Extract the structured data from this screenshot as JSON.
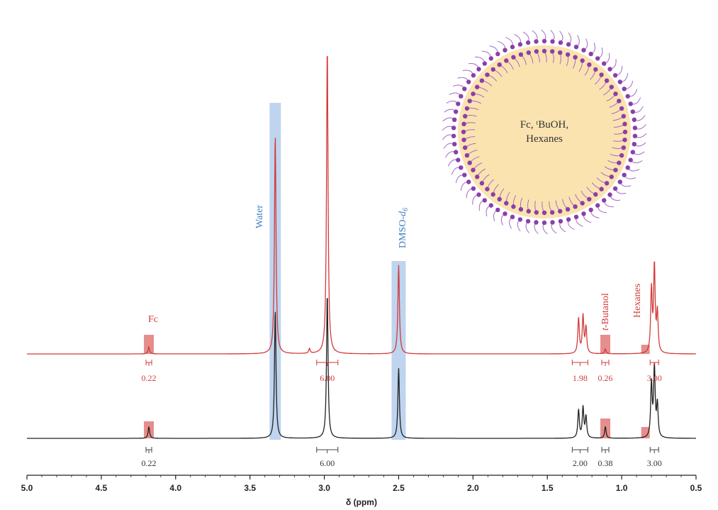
{
  "chart_data": {
    "type": "line",
    "xlabel": "δ (ppm)",
    "xlim": [
      5.0,
      0.5
    ],
    "x_ticks": [
      "5.0",
      "4.5",
      "4.0",
      "3.5",
      "3.0",
      "2.5",
      "2.0",
      "1.5",
      "1.0",
      "0.5"
    ],
    "x_tick_values": [
      5.0,
      4.5,
      4.0,
      3.5,
      3.0,
      2.5,
      2.0,
      1.5,
      1.0,
      0.5
    ],
    "series": [
      {
        "color": "#d23a3a",
        "peaks": [
          {
            "ppm": 4.18,
            "height": 0.03
          },
          {
            "ppm": 3.33,
            "height": 0.94
          },
          {
            "ppm": 3.1,
            "height": 0.02
          },
          {
            "ppm": 2.98,
            "height": 1.32
          },
          {
            "ppm": 2.5,
            "height": 0.38
          },
          {
            "ppm": 1.29,
            "height": 0.15
          },
          {
            "ppm": 1.26,
            "height": 0.16
          },
          {
            "ppm": 1.24,
            "height": 0.11
          },
          {
            "ppm": 1.11,
            "height": 0.02
          },
          {
            "ppm": 0.8,
            "height": 0.27
          },
          {
            "ppm": 0.78,
            "height": 0.37
          },
          {
            "ppm": 0.76,
            "height": 0.17
          }
        ],
        "integrals": [
          {
            "ppm": 4.18,
            "label": "0.22"
          },
          {
            "ppm": 2.98,
            "label": "6.00"
          },
          {
            "ppm": 1.28,
            "label": "1.98"
          },
          {
            "ppm": 1.11,
            "label": "0.26"
          },
          {
            "ppm": 0.78,
            "label": "3.00"
          }
        ]
      },
      {
        "color": "#222222",
        "peaks": [
          {
            "ppm": 4.18,
            "height": 0.05
          },
          {
            "ppm": 3.33,
            "height": 0.55
          },
          {
            "ppm": 2.98,
            "height": 0.62
          },
          {
            "ppm": 2.5,
            "height": 0.3
          },
          {
            "ppm": 1.29,
            "height": 0.12
          },
          {
            "ppm": 1.26,
            "height": 0.13
          },
          {
            "ppm": 1.24,
            "height": 0.09
          },
          {
            "ppm": 1.11,
            "height": 0.05
          },
          {
            "ppm": 0.8,
            "height": 0.23
          },
          {
            "ppm": 0.78,
            "height": 0.3
          },
          {
            "ppm": 0.76,
            "height": 0.14
          }
        ],
        "integrals": [
          {
            "ppm": 4.18,
            "label": "0.22"
          },
          {
            "ppm": 2.98,
            "label": "6.00"
          },
          {
            "ppm": 1.28,
            "label": "2.00"
          },
          {
            "ppm": 1.11,
            "label": "0.38"
          },
          {
            "ppm": 0.78,
            "label": "3.00"
          }
        ]
      }
    ],
    "solvent_highlights": [
      {
        "ppm": 3.33,
        "label": "Water",
        "color": "#a9c6e8"
      },
      {
        "ppm": 2.5,
        "label": "DMSO-d6",
        "color": "#a9c6e8"
      }
    ],
    "analyte_labels": [
      {
        "ppm": 4.18,
        "label": "Fc",
        "color": "#d23a3a"
      },
      {
        "ppm": 1.11,
        "label": "t-Butanol",
        "color": "#d23a3a"
      },
      {
        "ppm": 0.84,
        "label": "Hexanes",
        "color": "#d23a3a"
      }
    ]
  },
  "inset": {
    "line1": "Fc, ᵗBuOH,",
    "line2": "Hexanes",
    "core_color": "#fbe3b0",
    "headgroup_color": "#8b3fa8",
    "tail_color": "#a56bc8"
  },
  "labels": {
    "water": "Water",
    "dmso": "DMSO-",
    "dmso_d": "d",
    "dmso_6": "6",
    "fc": "Fc",
    "tbutanol_t": "t",
    "tbutanol_rest": "-Butanol",
    "hexanes": "Hexanes"
  }
}
